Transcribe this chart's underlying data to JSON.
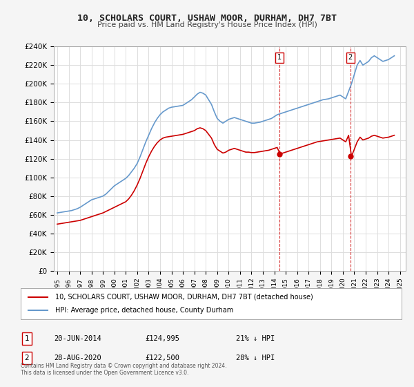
{
  "title": "10, SCHOLARS COURT, USHAW MOOR, DURHAM, DH7 7BT",
  "subtitle": "Price paid vs. HM Land Registry's House Price Index (HPI)",
  "ylabel_ticks": [
    "£0",
    "£20K",
    "£40K",
    "£60K",
    "£80K",
    "£100K",
    "£120K",
    "£140K",
    "£160K",
    "£180K",
    "£200K",
    "£220K",
    "£240K"
  ],
  "ylim": [
    0,
    240000
  ],
  "xlim_start": 1995.0,
  "xlim_end": 2025.5,
  "legend_line1": "10, SCHOLARS COURT, USHAW MOOR, DURHAM, DH7 7BT (detached house)",
  "legend_line2": "HPI: Average price, detached house, County Durham",
  "marker1_date": "20-JUN-2014",
  "marker1_price": "£124,995",
  "marker1_hpi": "21% ↓ HPI",
  "marker1_x": 2014.47,
  "marker1_y": 124995,
  "marker2_date": "28-AUG-2020",
  "marker2_price": "£122,500",
  "marker2_hpi": "28% ↓ HPI",
  "marker2_x": 2020.66,
  "marker2_y": 122500,
  "footer": "Contains HM Land Registry data © Crown copyright and database right 2024.\nThis data is licensed under the Open Government Licence v3.0.",
  "line_color_red": "#cc0000",
  "line_color_blue": "#6699cc",
  "background_color": "#f5f5f5",
  "plot_bg_color": "#ffffff",
  "grid_color": "#dddddd",
  "hpi_data_x": [
    1995.0,
    1995.25,
    1995.5,
    1995.75,
    1996.0,
    1996.25,
    1996.5,
    1996.75,
    1997.0,
    1997.25,
    1997.5,
    1997.75,
    1998.0,
    1998.25,
    1998.5,
    1998.75,
    1999.0,
    1999.25,
    1999.5,
    1999.75,
    2000.0,
    2000.25,
    2000.5,
    2000.75,
    2001.0,
    2001.25,
    2001.5,
    2001.75,
    2002.0,
    2002.25,
    2002.5,
    2002.75,
    2003.0,
    2003.25,
    2003.5,
    2003.75,
    2004.0,
    2004.25,
    2004.5,
    2004.75,
    2005.0,
    2005.25,
    2005.5,
    2005.75,
    2006.0,
    2006.25,
    2006.5,
    2006.75,
    2007.0,
    2007.25,
    2007.5,
    2007.75,
    2008.0,
    2008.25,
    2008.5,
    2008.75,
    2009.0,
    2009.25,
    2009.5,
    2009.75,
    2010.0,
    2010.25,
    2010.5,
    2010.75,
    2011.0,
    2011.25,
    2011.5,
    2011.75,
    2012.0,
    2012.25,
    2012.5,
    2012.75,
    2013.0,
    2013.25,
    2013.5,
    2013.75,
    2014.0,
    2014.25,
    2014.5,
    2014.75,
    2015.0,
    2015.25,
    2015.5,
    2015.75,
    2016.0,
    2016.25,
    2016.5,
    2016.75,
    2017.0,
    2017.25,
    2017.5,
    2017.75,
    2018.0,
    2018.25,
    2018.5,
    2018.75,
    2019.0,
    2019.25,
    2019.5,
    2019.75,
    2020.0,
    2020.25,
    2020.5,
    2020.75,
    2021.0,
    2021.25,
    2021.5,
    2021.75,
    2022.0,
    2022.25,
    2022.5,
    2022.75,
    2023.0,
    2023.25,
    2023.5,
    2023.75,
    2024.0,
    2024.25,
    2024.5
  ],
  "hpi_data_y": [
    62000,
    62500,
    63000,
    63500,
    64000,
    64500,
    65500,
    66500,
    68000,
    70000,
    72000,
    74000,
    76000,
    77000,
    78000,
    79000,
    80000,
    82000,
    85000,
    88000,
    91000,
    93000,
    95000,
    97000,
    99000,
    102000,
    106000,
    110000,
    115000,
    122000,
    130000,
    138000,
    145000,
    152000,
    158000,
    163000,
    167000,
    170000,
    172000,
    174000,
    175000,
    175500,
    176000,
    176500,
    177000,
    179000,
    181000,
    183000,
    186000,
    189000,
    191000,
    190000,
    188000,
    183000,
    178000,
    170000,
    163000,
    160000,
    158000,
    160000,
    162000,
    163000,
    164000,
    163000,
    162000,
    161000,
    160000,
    159000,
    158000,
    158000,
    158500,
    159000,
    160000,
    161000,
    162000,
    163000,
    165000,
    167000,
    168000,
    169000,
    170000,
    171000,
    172000,
    173000,
    174000,
    175000,
    176000,
    177000,
    178000,
    179000,
    180000,
    181000,
    182000,
    183000,
    183500,
    184000,
    185000,
    186000,
    187000,
    188000,
    186000,
    184000,
    192000,
    200000,
    210000,
    220000,
    225000,
    220000,
    222000,
    224000,
    228000,
    230000,
    228000,
    226000,
    224000,
    225000,
    226000,
    228000,
    230000
  ],
  "price_data_x": [
    1995.0,
    1995.25,
    1995.5,
    1995.75,
    1996.0,
    1996.25,
    1996.5,
    1996.75,
    1997.0,
    1997.25,
    1997.5,
    1997.75,
    1998.0,
    1998.25,
    1998.5,
    1998.75,
    1999.0,
    1999.25,
    1999.5,
    1999.75,
    2000.0,
    2000.25,
    2000.5,
    2000.75,
    2001.0,
    2001.25,
    2001.5,
    2001.75,
    2002.0,
    2002.25,
    2002.5,
    2002.75,
    2003.0,
    2003.25,
    2003.5,
    2003.75,
    2004.0,
    2004.25,
    2004.5,
    2004.75,
    2005.0,
    2005.25,
    2005.5,
    2005.75,
    2006.0,
    2006.25,
    2006.5,
    2006.75,
    2007.0,
    2007.25,
    2007.5,
    2007.75,
    2008.0,
    2008.25,
    2008.5,
    2008.75,
    2009.0,
    2009.25,
    2009.5,
    2009.75,
    2010.0,
    2010.25,
    2010.5,
    2010.75,
    2011.0,
    2011.25,
    2011.5,
    2011.75,
    2012.0,
    2012.25,
    2012.5,
    2012.75,
    2013.0,
    2013.25,
    2013.5,
    2013.75,
    2014.0,
    2014.25,
    2014.5,
    2014.75,
    2015.0,
    2015.25,
    2015.5,
    2015.75,
    2016.0,
    2016.25,
    2016.5,
    2016.75,
    2017.0,
    2017.25,
    2017.5,
    2017.75,
    2018.0,
    2018.25,
    2018.5,
    2018.75,
    2019.0,
    2019.25,
    2019.5,
    2019.75,
    2020.0,
    2020.25,
    2020.5,
    2020.75,
    2021.0,
    2021.25,
    2021.5,
    2021.75,
    2022.0,
    2022.25,
    2022.5,
    2022.75,
    2023.0,
    2023.25,
    2023.5,
    2023.75,
    2024.0,
    2024.25,
    2024.5
  ],
  "price_data_y": [
    50000,
    50500,
    51000,
    51500,
    52000,
    52500,
    53000,
    53500,
    54000,
    55000,
    56000,
    57000,
    58000,
    59000,
    60000,
    61000,
    62000,
    63500,
    65000,
    66500,
    68000,
    69500,
    71000,
    72500,
    74000,
    77000,
    81000,
    86000,
    92000,
    99000,
    107000,
    115000,
    122000,
    128000,
    133000,
    137000,
    140000,
    142000,
    143000,
    143500,
    144000,
    144500,
    145000,
    145500,
    146000,
    147000,
    148000,
    149000,
    150000,
    152000,
    153000,
    152000,
    150000,
    146000,
    142000,
    135000,
    130000,
    128000,
    126000,
    127000,
    129000,
    130000,
    131000,
    130000,
    129000,
    128000,
    127000,
    127000,
    126500,
    126500,
    127000,
    127500,
    128000,
    128500,
    129000,
    130000,
    131000,
    132000,
    124995,
    126000,
    127000,
    128000,
    129000,
    130000,
    131000,
    132000,
    133000,
    134000,
    135000,
    136000,
    137000,
    138000,
    138500,
    139000,
    139500,
    140000,
    140500,
    141000,
    141500,
    142000,
    140000,
    138000,
    145000,
    122500,
    130000,
    138000,
    143000,
    140000,
    141000,
    142000,
    144000,
    145000,
    144000,
    143000,
    142000,
    142500,
    143000,
    144000,
    145000
  ]
}
